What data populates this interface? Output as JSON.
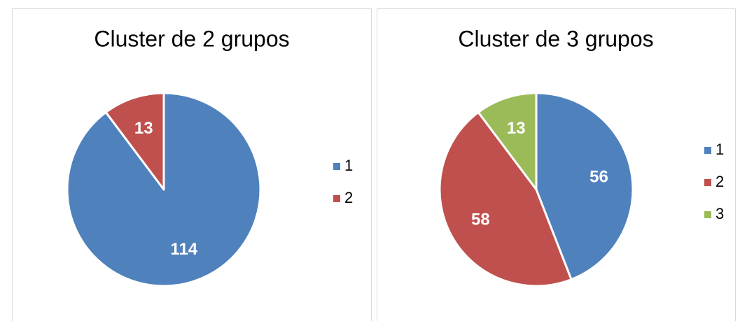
{
  "chart_data": [
    {
      "type": "pie",
      "title": "Cluster de 2 grupos",
      "categories": [
        "1",
        "2"
      ],
      "values": [
        114,
        13
      ],
      "colors": [
        "#4f81bd",
        "#c0504d"
      ],
      "legend": "right"
    },
    {
      "type": "pie",
      "title": "Cluster de 3 grupos",
      "categories": [
        "1",
        "2",
        "3"
      ],
      "values": [
        56,
        58,
        13
      ],
      "colors": [
        "#4f81bd",
        "#c0504d",
        "#9bbb59"
      ],
      "legend": "right"
    }
  ]
}
